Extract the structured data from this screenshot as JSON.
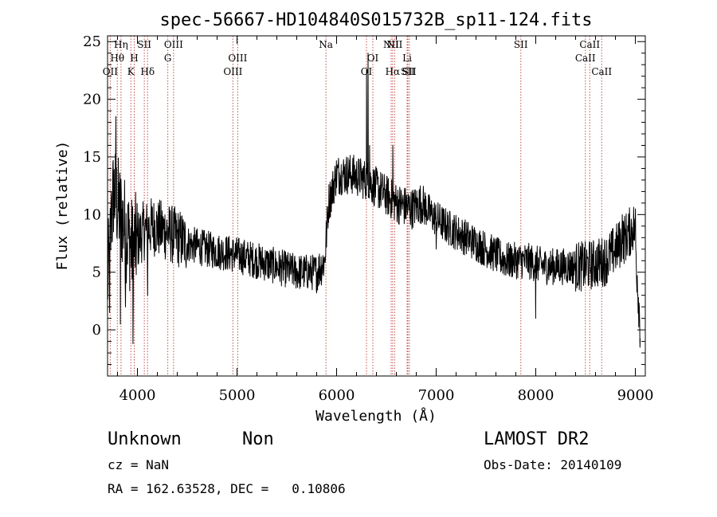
{
  "chart_data": {
    "type": "line",
    "title": "spec-56667-HD104840S015732B_sp11-124.fits",
    "xlabel": "Wavelength (Å)",
    "ylabel": "Flux (relative)",
    "xlim": [
      3700,
      9100
    ],
    "ylim": [
      -4,
      25.5
    ],
    "xticks": [
      4000,
      5000,
      6000,
      7000,
      8000,
      9000
    ],
    "yticks": [
      0,
      5,
      10,
      15,
      20,
      25
    ],
    "continuum": [
      [
        3700,
        4
      ],
      [
        3760,
        12
      ],
      [
        3850,
        9.5
      ],
      [
        3950,
        7
      ],
      [
        4050,
        8.5
      ],
      [
        4150,
        9
      ],
      [
        4300,
        8.5
      ],
      [
        4500,
        7.5
      ],
      [
        4700,
        7
      ],
      [
        5000,
        6.5
      ],
      [
        5200,
        6
      ],
      [
        5400,
        5.5
      ],
      [
        5600,
        5
      ],
      [
        5800,
        5
      ],
      [
        5880,
        6
      ],
      [
        5920,
        11
      ],
      [
        6000,
        13.5
      ],
      [
        6150,
        13.5
      ],
      [
        6300,
        13
      ],
      [
        6450,
        12
      ],
      [
        6600,
        11
      ],
      [
        6750,
        10.5
      ],
      [
        6850,
        11
      ],
      [
        6950,
        10
      ],
      [
        7100,
        9
      ],
      [
        7300,
        8
      ],
      [
        7500,
        7
      ],
      [
        7700,
        6
      ],
      [
        7900,
        6
      ],
      [
        8100,
        5.5
      ],
      [
        8300,
        5.5
      ],
      [
        8500,
        5.5
      ],
      [
        8700,
        6
      ],
      [
        8800,
        7
      ],
      [
        8900,
        8
      ],
      [
        8990,
        9
      ],
      [
        9050,
        0
      ]
    ],
    "spikes": [
      [
        3720,
        1.5
      ],
      [
        3740,
        12
      ],
      [
        3785,
        18.5
      ],
      [
        3830,
        0.5
      ],
      [
        3880,
        2
      ],
      [
        3955,
        -1.2
      ],
      [
        4102,
        3
      ],
      [
        6300,
        22.5
      ],
      [
        6315,
        24
      ],
      [
        6330,
        16
      ],
      [
        6565,
        16
      ],
      [
        7000,
        7
      ],
      [
        8000,
        1
      ],
      [
        8620,
        4.5
      ],
      [
        8870,
        10
      ],
      [
        9000,
        10.5
      ],
      [
        9040,
        2
      ]
    ],
    "spectral_lines": [
      {
        "label": "OII",
        "x": 3727,
        "row": 2
      },
      {
        "label": "Hθ",
        "x": 3798,
        "row": 1
      },
      {
        "label": "Hη",
        "x": 3835,
        "row": 0
      },
      {
        "label": "K",
        "x": 3934,
        "row": 2
      },
      {
        "label": "H",
        "x": 3968,
        "row": 1
      },
      {
        "label": "SII",
        "x": 4069,
        "row": 0
      },
      {
        "label": "Hδ",
        "x": 4102,
        "row": 2
      },
      {
        "label": "G",
        "x": 4305,
        "row": 1
      },
      {
        "label": "OIII",
        "x": 4363,
        "row": 0
      },
      {
        "label": "OIII",
        "x": 4959,
        "row": 2
      },
      {
        "label": "OIII",
        "x": 5007,
        "row": 1
      },
      {
        "label": "Na",
        "x": 5893,
        "row": 0
      },
      {
        "label": "OI",
        "x": 6300,
        "row": 2
      },
      {
        "label": "OI",
        "x": 6364,
        "row": 1
      },
      {
        "label": "NII",
        "x": 6548,
        "row": 0
      },
      {
        "label": "Hα",
        "x": 6563,
        "row": 2
      },
      {
        "label": "NII",
        "x": 6583,
        "row": 0
      },
      {
        "label": "Li",
        "x": 6708,
        "row": 1
      },
      {
        "label": "SII",
        "x": 6716,
        "row": 2
      },
      {
        "label": "SII",
        "x": 6731,
        "row": 2
      },
      {
        "label": "SII",
        "x": 7850,
        "row": 0
      },
      {
        "label": "CaII",
        "x": 8498,
        "row": 1
      },
      {
        "label": "CaII",
        "x": 8542,
        "row": 0
      },
      {
        "label": "CaII",
        "x": 8662,
        "row": 2
      }
    ]
  },
  "info": {
    "object_class": "Unknown",
    "object_subclass": "Non",
    "survey": "LAMOST DR2",
    "cz": "cz = NaN",
    "obs_date": "Obs-Date: 20140109",
    "coords": "RA = 162.63528, DEC =   0.10806"
  },
  "colors": {
    "spectrum": "#000000",
    "line_markers": "#c0504d",
    "axes": "#000000"
  }
}
